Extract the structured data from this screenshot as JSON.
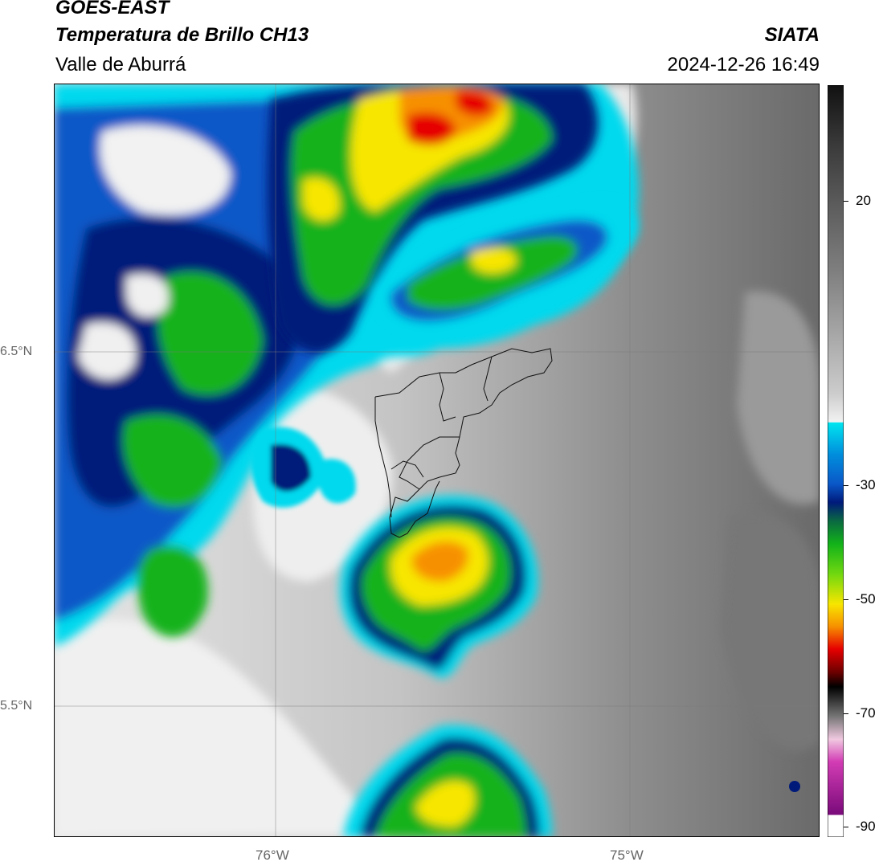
{
  "header": {
    "satellite": "GOES-EAST",
    "product": "Temperatura de Brillo CH13",
    "region": "Valle de Aburrá",
    "agency": "SIATA",
    "datetime": "2024-12-26 16:49"
  },
  "map": {
    "lat_labels": [
      "6.5°N",
      "5.5°N"
    ],
    "lon_labels": [
      "76°W",
      "75°W"
    ],
    "gridlines": true,
    "outline": "Valle de Aburrá municipalities"
  },
  "colorbar": {
    "tick_labels": [
      "20",
      "-30",
      "-50",
      "-70",
      "-90"
    ],
    "colors": {
      "warm_gray_light": "#f2f2f2",
      "warm_gray_dark": "#6e6e6e",
      "cyan": "#00e5f0",
      "blue": "#0a58c8",
      "navy": "#001a7a",
      "green": "#12b21a",
      "yellow": "#f7e600",
      "orange": "#f79000",
      "red": "#e60000",
      "black": "#000000",
      "magenta": "#d23cb4",
      "purple": "#7a0a7a"
    }
  }
}
